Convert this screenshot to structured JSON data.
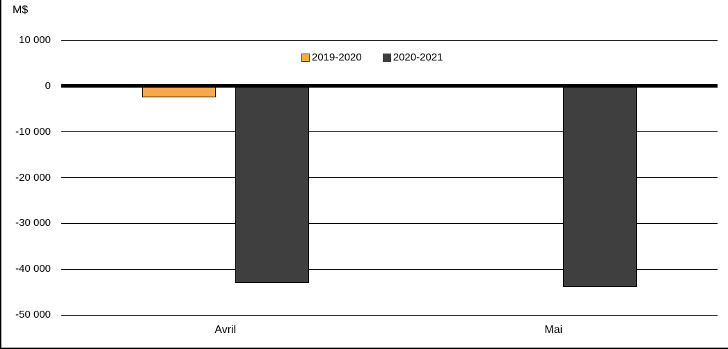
{
  "chart_data": {
    "type": "bar",
    "title": "",
    "ylabel": "M$",
    "xlabel": "",
    "categories": [
      "Avril",
      "Mai"
    ],
    "series": [
      {
        "name": "2019-2020",
        "fill": "#F8A94B",
        "border": "#000000",
        "values": [
          -2500,
          500
        ]
      },
      {
        "name": "2020-2021",
        "fill": "#3F3F3F",
        "border": "#000000",
        "values": [
          -43000,
          -44000
        ]
      }
    ],
    "ylim": [
      -50000,
      10000
    ],
    "ytick_step": 10000,
    "ytick_labels": [
      "10 000",
      "0",
      "-10 000",
      "-20 000",
      "-30 000",
      "-40 000",
      "-50 000"
    ],
    "grid": true,
    "legend_position": "top-center",
    "colors": {
      "gridline": "#000000",
      "zero_line": "#000000",
      "frame": "#000000",
      "background": "#FFFFFF",
      "text": "#000000"
    }
  }
}
